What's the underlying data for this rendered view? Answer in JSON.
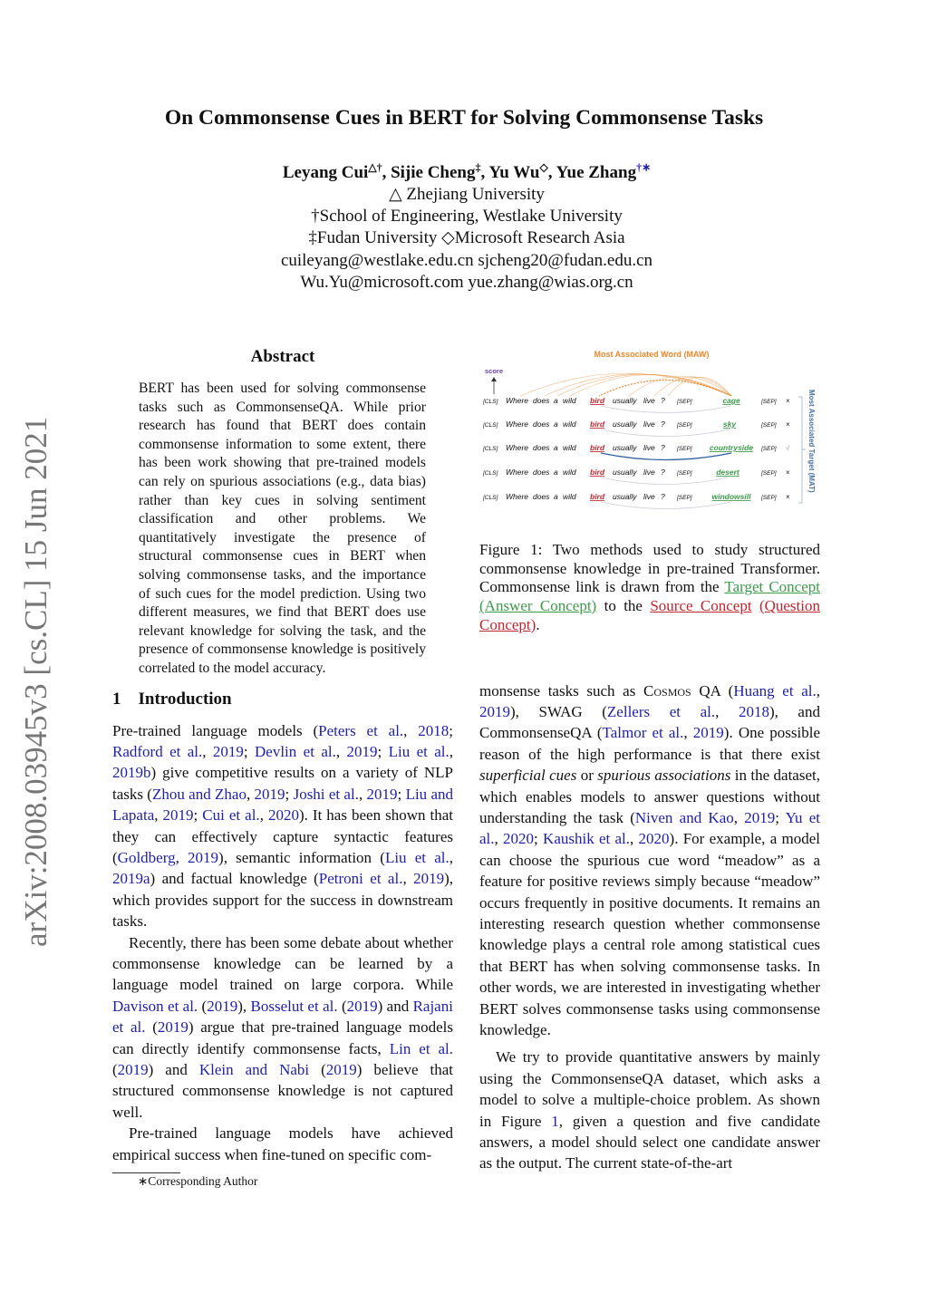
{
  "sidebar": {
    "arxiv_id": "arXiv:2008.03945v3  [cs.CL]  15 Jun 2021"
  },
  "title": "On Commonsense Cues in BERT for Solving Commonsense Tasks",
  "authors": [
    {
      "name": "Leyang Cui",
      "sup": "△†"
    },
    {
      "name": "Sijie Cheng",
      "sup": "‡"
    },
    {
      "name": "Yu Wu",
      "sup": "◇"
    },
    {
      "name": "Yue Zhang",
      "sup": "†∗"
    }
  ],
  "affiliations": [
    "△ Zhejiang University",
    "†School of Engineering, Westlake University",
    "‡Fudan University ◇Microsoft Research Asia",
    "cuileyang@westlake.edu.cn  sjcheng20@fudan.edu.cn",
    "Wu.Yu@microsoft.com  yue.zhang@wias.org.cn"
  ],
  "abstract": {
    "heading": "Abstract",
    "text": "BERT has been used for solving commonsense tasks such as CommonsenseQA. While prior research has found that BERT does contain commonsense information to some extent, there has been work showing that pre-trained models can rely on spurious associations (e.g., data bias) rather than key cues in solving sentiment classification and other problems. We quantitatively investigate the presence of structural commonsense cues in BERT when solving commonsense tasks, and the importance of such cues for the model prediction. Using two different measures, we find that BERT does use relevant knowledge for solving the task, and the presence of commonsense knowledge is positively correlated to the model accuracy."
  },
  "intro": {
    "heading": "1    Introduction",
    "left_paragraphs": [
      [
        {
          "t": "Pre-trained language models ("
        },
        {
          "t": "Peters et al.",
          "c": "b"
        },
        {
          "t": ", "
        },
        {
          "t": "2018",
          "c": "b"
        },
        {
          "t": "; "
        },
        {
          "t": "Radford et al.",
          "c": "b"
        },
        {
          "t": ", "
        },
        {
          "t": "2019",
          "c": "b"
        },
        {
          "t": "; "
        },
        {
          "t": "Devlin et al.",
          "c": "b"
        },
        {
          "t": ", "
        },
        {
          "t": "2019",
          "c": "b"
        },
        {
          "t": "; "
        },
        {
          "t": "Liu et al.",
          "c": "b"
        },
        {
          "t": ", "
        },
        {
          "t": "2019b",
          "c": "b"
        },
        {
          "t": ") give competitive results on a variety of NLP tasks ("
        },
        {
          "t": "Zhou and Zhao",
          "c": "b"
        },
        {
          "t": ", "
        },
        {
          "t": "2019",
          "c": "b"
        },
        {
          "t": "; "
        },
        {
          "t": "Joshi et al.",
          "c": "b"
        },
        {
          "t": ", "
        },
        {
          "t": "2019",
          "c": "b"
        },
        {
          "t": "; "
        },
        {
          "t": "Liu and Lapata",
          "c": "b"
        },
        {
          "t": ", "
        },
        {
          "t": "2019",
          "c": "b"
        },
        {
          "t": "; "
        },
        {
          "t": "Cui et al.",
          "c": "b"
        },
        {
          "t": ", "
        },
        {
          "t": "2020",
          "c": "b"
        },
        {
          "t": ").  It has been shown that they can effectively capture syntactic features ("
        },
        {
          "t": "Goldberg",
          "c": "b"
        },
        {
          "t": ", "
        },
        {
          "t": "2019",
          "c": "b"
        },
        {
          "t": "), semantic information ("
        },
        {
          "t": "Liu et al.",
          "c": "b"
        },
        {
          "t": ", "
        },
        {
          "t": "2019a",
          "c": "b"
        },
        {
          "t": ") and factual knowledge ("
        },
        {
          "t": "Petroni et al.",
          "c": "b"
        },
        {
          "t": ", "
        },
        {
          "t": "2019",
          "c": "b"
        },
        {
          "t": "), which provides support for the success in downstream tasks."
        }
      ],
      [
        {
          "t": "Recently, there has been some debate about whether commonsense knowledge can be learned by a language model trained on large corpora. While "
        },
        {
          "t": "Davison et al.",
          "c": "b"
        },
        {
          "t": " ("
        },
        {
          "t": "2019",
          "c": "b"
        },
        {
          "t": "), "
        },
        {
          "t": "Bosselut et al.",
          "c": "b"
        },
        {
          "t": " ("
        },
        {
          "t": "2019",
          "c": "b"
        },
        {
          "t": ") and "
        },
        {
          "t": "Rajani et al.",
          "c": "b"
        },
        {
          "t": " ("
        },
        {
          "t": "2019",
          "c": "b"
        },
        {
          "t": ") argue that pre-trained language models can directly identify commonsense facts, "
        },
        {
          "t": "Lin et al.",
          "c": "b"
        },
        {
          "t": " ("
        },
        {
          "t": "2019",
          "c": "b"
        },
        {
          "t": ") and "
        },
        {
          "t": "Klein and Nabi",
          "c": "b"
        },
        {
          "t": " ("
        },
        {
          "t": "2019",
          "c": "b"
        },
        {
          "t": ") believe that structured commonsense knowledge is not captured well."
        }
      ],
      [
        {
          "t": "Pre-trained language models have achieved empirical success when fine-tuned on specific com-"
        }
      ]
    ],
    "right_paragraphs": [
      [
        {
          "t": "monsense tasks such as "
        },
        {
          "t": "Cosmos",
          "c": "sc"
        },
        {
          "t": " QA ("
        },
        {
          "t": "Huang et al.",
          "c": "b"
        },
        {
          "t": ", "
        },
        {
          "t": "2019",
          "c": "b"
        },
        {
          "t": "), SWAG ("
        },
        {
          "t": "Zellers et al.",
          "c": "b"
        },
        {
          "t": ", "
        },
        {
          "t": "2018",
          "c": "b"
        },
        {
          "t": "), and CommonsenseQA ("
        },
        {
          "t": "Talmor et al.",
          "c": "b"
        },
        {
          "t": ", "
        },
        {
          "t": "2019",
          "c": "b"
        },
        {
          "t": "). One possible reason of the high performance is that there exist "
        },
        {
          "t": "superficial cues",
          "c": "i"
        },
        {
          "t": " or "
        },
        {
          "t": "spurious associations",
          "c": "i"
        },
        {
          "t": " in the dataset, which enables models to answer questions without understanding the task ("
        },
        {
          "t": "Niven and Kao",
          "c": "b"
        },
        {
          "t": ", "
        },
        {
          "t": "2019",
          "c": "b"
        },
        {
          "t": "; "
        },
        {
          "t": "Yu et al.",
          "c": "b"
        },
        {
          "t": ", "
        },
        {
          "t": "2020",
          "c": "b"
        },
        {
          "t": "; "
        },
        {
          "t": "Kaushik et al.",
          "c": "b"
        },
        {
          "t": ", "
        },
        {
          "t": "2020",
          "c": "b"
        },
        {
          "t": ").  For example, a model can choose the spurious cue word “meadow” as a feature for positive reviews simply because “meadow” occurs frequently in positive documents. It remains an interesting research question whether commonsense knowledge plays a central role among statistical cues that BERT has when solving commonsense tasks.  In other words, we are interested in investigating whether BERT solves commonsense tasks using commonsense knowledge."
        }
      ],
      [
        {
          "t": "We try to provide quantitative answers by mainly using the CommonsenseQA dataset, which asks a model to solve a multiple-choice problem.  As shown in Figure "
        },
        {
          "t": "1",
          "c": "b"
        },
        {
          "t": ", given a question and five candidate answers, a model should select one candidate answer as the output. The current state-of-the-art"
        }
      ]
    ]
  },
  "footnote": "∗Corresponding Author",
  "figure": {
    "maw_label": "Most Associated Word (MAW)",
    "score_label": "score",
    "mat_label": "Most Associated Target (MAT)",
    "question_tokens": [
      "[CLS]",
      "Where",
      "does",
      "a",
      "wild",
      "bird",
      "usually",
      "live",
      "?",
      "[SEP]"
    ],
    "rows": [
      {
        "answer": "cage",
        "mark": "×"
      },
      {
        "answer": "sky",
        "mark": "×"
      },
      {
        "answer": "countryside",
        "mark": "√"
      },
      {
        "answer": "desert",
        "mark": "×"
      },
      {
        "answer": "windowsill",
        "mark": "×"
      }
    ],
    "end_token": "[SEP]",
    "colors": {
      "maw": "#e8892d",
      "score": "#6b3fa0",
      "source": "#c0262d",
      "target": "#3c9a4a",
      "correct_link": "#2f5f9e",
      "link": "#c9ced6",
      "mat": "#4a6fa5"
    }
  },
  "caption": [
    {
      "t": "Figure 1:   Two methods used to study structured commonsense knowledge in pre-trained Transformer.   Commonsense link is drawn from the "
    },
    {
      "t": "Target Concept",
      "c": "g"
    },
    {
      "t": " "
    },
    {
      "t": "(Answer Concept)",
      "c": "g"
    },
    {
      "t": " to the "
    },
    {
      "t": "Source Concept",
      "c": "r"
    },
    {
      "t": " "
    },
    {
      "t": "(Question Concept)",
      "c": "r"
    },
    {
      "t": "."
    }
  ]
}
